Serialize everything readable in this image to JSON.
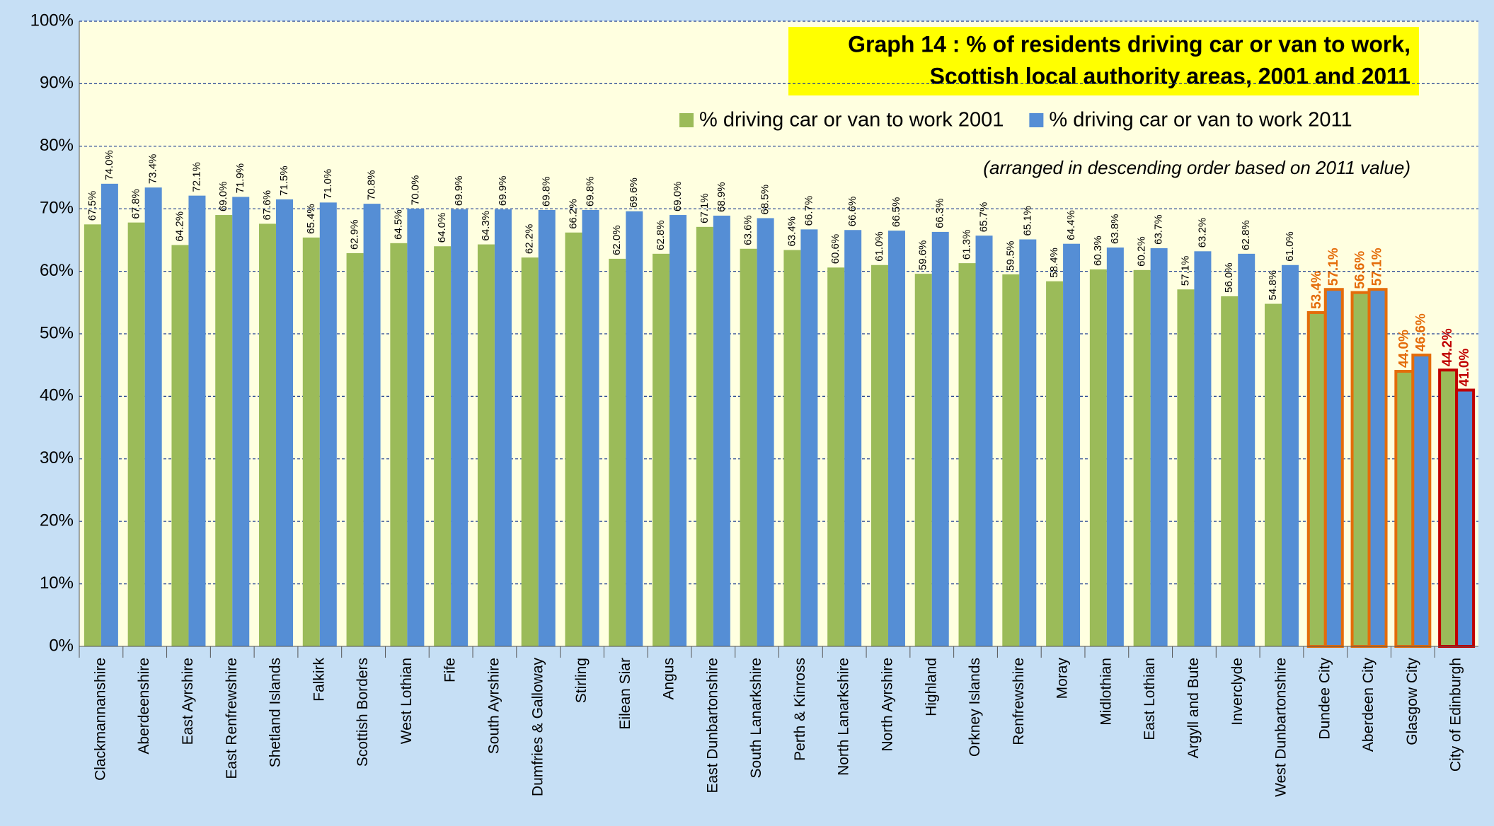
{
  "chart_data": {
    "type": "bar",
    "title": [
      "Graph 14  :  % of residents driving car or van to work,",
      "Scottish local authority areas, 2001 and 2011"
    ],
    "note": "(arranged in descending order  based on 2011 value)",
    "categories": [
      "Clackmannanshire",
      "Aberdeenshire",
      "East Ayrshire",
      "East Renfrewshire",
      "Shetland Islands",
      "Falkirk",
      "Scottish Borders",
      "West Lothian",
      "Fife",
      "South Ayrshire",
      "Dumfries & Galloway",
      "Stirling",
      "Eilean Siar",
      "Angus",
      "East Dunbartonshire",
      "South Lanarkshire",
      "Perth & Kinross",
      "North Lanarkshire",
      "North Ayrshire",
      "Highland",
      "Orkney Islands",
      "Renfrewshire",
      "Moray",
      "Midlothian",
      "East Lothian",
      "Argyll and Bute",
      "Inverclyde",
      "West Dunbartonshire",
      "Dundee City",
      "Aberdeen City",
      "Glasgow City",
      "City of Edinburgh"
    ],
    "series": [
      {
        "name": "% driving car or van to work 2001",
        "color": "#9bbb59",
        "values": [
          67.5,
          67.8,
          64.2,
          69.0,
          67.6,
          65.4,
          62.9,
          64.5,
          64.0,
          64.3,
          62.2,
          66.2,
          62.0,
          62.8,
          67.1,
          63.6,
          63.4,
          60.6,
          61.0,
          59.6,
          61.3,
          59.5,
          58.4,
          60.3,
          60.2,
          57.1,
          56.0,
          54.8,
          53.4,
          56.6,
          44.0,
          44.2
        ],
        "value_labels": [
          "67.5%",
          "67.8%",
          "64.2%",
          "69.0%",
          "67.6%",
          "65.4%",
          "62.9%",
          "64.5%",
          "64.0%",
          "64.3%",
          "62.2%",
          "66.2%",
          "62.0%",
          "62.8%",
          "67.1%",
          "63.6%",
          "63.4%",
          "60.6%",
          "61.0%",
          "59.6%",
          "61.3%",
          "59.5%",
          "58.4%",
          "60.3%",
          "60.2%",
          "57.1%",
          "56.0%",
          "54.8%",
          "53.4%",
          "56.6%",
          "44.0%",
          "44.2%"
        ],
        "edge_colors": [
          null,
          null,
          null,
          null,
          null,
          null,
          null,
          null,
          null,
          null,
          null,
          null,
          null,
          null,
          null,
          null,
          null,
          null,
          null,
          null,
          null,
          null,
          null,
          null,
          null,
          null,
          null,
          null,
          "#e46c0a",
          "#e46c0a",
          "#e46c0a",
          "#c00000"
        ]
      },
      {
        "name": "% driving car or van to work 2011",
        "color": "#558ed5",
        "values": [
          74.0,
          73.4,
          72.1,
          71.9,
          71.5,
          71.0,
          70.8,
          70.0,
          69.9,
          69.9,
          69.8,
          69.8,
          69.6,
          69.0,
          68.9,
          68.5,
          66.7,
          66.6,
          66.5,
          66.3,
          65.7,
          65.1,
          64.4,
          63.8,
          63.7,
          63.2,
          62.8,
          61.0,
          57.1,
          57.1,
          46.6,
          41.0
        ],
        "value_labels": [
          "74.0%",
          "73.4%",
          "72.1%",
          "71.9%",
          "71.5%",
          "71.0%",
          "70.8%",
          "70.0%",
          "69.9%",
          "69.9%",
          "69.8%",
          "69.8%",
          "69.6%",
          "69.0%",
          "68.9%",
          "68.5%",
          "66.7%",
          "66.6%",
          "66.5%",
          "66.3%",
          "65.7%",
          "65.1%",
          "64.4%",
          "63.8%",
          "63.7%",
          "63.2%",
          "62.8%",
          "61.0%",
          "57.1%",
          "57.1%",
          "46.6%",
          "41.0%"
        ],
        "edge_colors": [
          null,
          null,
          null,
          null,
          null,
          null,
          null,
          null,
          null,
          null,
          null,
          null,
          null,
          null,
          null,
          null,
          null,
          null,
          null,
          null,
          null,
          null,
          null,
          null,
          null,
          null,
          null,
          null,
          "#e46c0a",
          "#e46c0a",
          "#e46c0a",
          "#c00000"
        ]
      }
    ],
    "ylim": [
      0,
      100
    ],
    "yticks": [
      {
        "value": 0,
        "label": "0%"
      },
      {
        "value": 10,
        "label": "10%"
      },
      {
        "value": 20,
        "label": "20%"
      },
      {
        "value": 30,
        "label": "30%"
      },
      {
        "value": 40,
        "label": "40%"
      },
      {
        "value": 50,
        "label": "50%"
      },
      {
        "value": 60,
        "label": "60%"
      },
      {
        "value": 70,
        "label": "70%"
      },
      {
        "value": 80,
        "label": "80%"
      },
      {
        "value": 90,
        "label": "90%"
      },
      {
        "value": 100,
        "label": "100%"
      }
    ],
    "grid": true,
    "legend": "top-right"
  }
}
